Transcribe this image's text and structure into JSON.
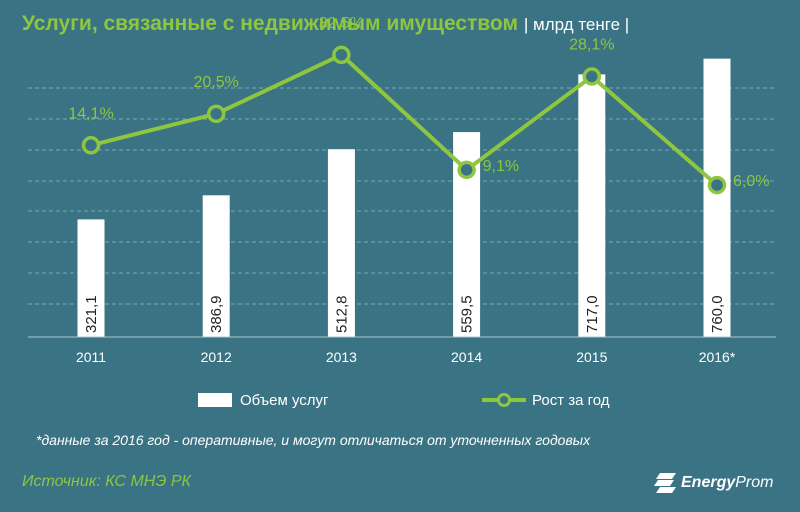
{
  "title": "Услуги, связанные с недвижимым имуществом",
  "unit": "| млрд тенге |",
  "legend": {
    "bars": "Объем услуг",
    "line": "Рост за год"
  },
  "footnote": "*данные за 2016 год - оперативные, и могут отличаться от уточненных годовых",
  "source": "Источник: КС МНЭ РК",
  "logo": {
    "bold": "Energy",
    "regular": "Prom"
  },
  "colors": {
    "background": "#3a7383",
    "accent": "#8fc63f",
    "bar": "#ffffff",
    "grid": "#79a8b4"
  },
  "chart_data": {
    "type": "bar+line",
    "categories": [
      "2011",
      "2012",
      "2013",
      "2014",
      "2015",
      "2016*"
    ],
    "series": [
      {
        "name": "Объем услуг",
        "type": "bar",
        "values": [
          321.1,
          386.9,
          512.8,
          559.5,
          717.0,
          760.0
        ],
        "labels": [
          "321,1",
          "386,9",
          "512,8",
          "559,5",
          "717,0",
          "760,0"
        ],
        "ylim": [
          0,
          800
        ]
      },
      {
        "name": "Рост за год",
        "type": "line",
        "values": [
          14.1,
          20.5,
          32.5,
          9.1,
          28.1,
          6.0
        ],
        "labels": [
          "14,1%",
          "20,5%",
          "32,5%",
          "9,1%",
          "28,1%",
          "6,0%"
        ],
        "ylim": [
          -30,
          40
        ]
      }
    ],
    "grid": true,
    "legend_position": "bottom"
  }
}
